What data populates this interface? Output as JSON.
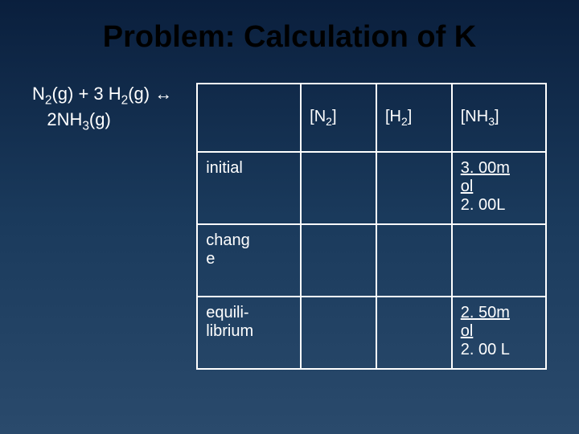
{
  "title": "Problem:  Calculation of K",
  "equation": {
    "line1_parts": [
      "N",
      "2",
      "(g) + 3 H",
      "2",
      "(g)  ↔"
    ],
    "line2_parts": [
      "2NH",
      "3",
      "(g)"
    ]
  },
  "table": {
    "header": {
      "c0": "",
      "c1_parts": [
        "[N",
        "2",
        "]"
      ],
      "c2_parts": [
        "[H",
        "2",
        "]"
      ],
      "c3_parts": [
        "[NH",
        "3",
        "]"
      ]
    },
    "rows": [
      {
        "label": "initial",
        "c1": "",
        "c2": "",
        "c3_line1": "3. 00m",
        "c3_line2": "ol",
        "c3_line3": "2. 00L"
      },
      {
        "label_line1": "chang",
        "label_line2": "e",
        "c1": "",
        "c2": "",
        "c3": ""
      },
      {
        "label_line1": "equili-",
        "label_line2": "librium",
        "c1": "",
        "c2": "",
        "c3_line1": "2. 50m",
        "c3_line2": "ol",
        "c3_line3": "2. 00  L"
      }
    ]
  }
}
